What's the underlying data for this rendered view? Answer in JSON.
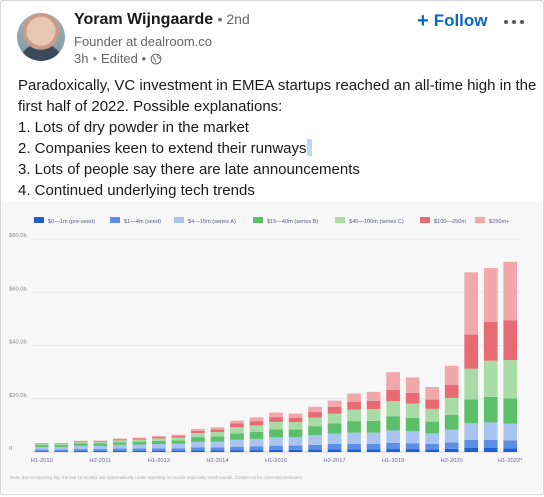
{
  "post": {
    "author_name": "Yoram Wijngaarde",
    "degree": "• 2nd",
    "headline": "Founder at dealroom.co",
    "meta_time": "3h",
    "meta_edited": "Edited •",
    "follow_label": "Follow",
    "follow_icon": "plus-icon",
    "more_icon": "more-horizontal-icon",
    "visibility_icon": "globe-icon",
    "text_lines": [
      "Paradoxically, VC investment in EMEA startups reached an all-time high in the",
      "first half of 2022. Possible explanations:",
      "1. Lots of dry powder in the market",
      "2. Companies keen to extend their runways",
      "3. Lots of people say there are late announcements",
      "4. Continued underlying tech trends"
    ]
  },
  "chart_data": {
    "type": "bar",
    "stacked": true,
    "title": "",
    "xlabel": "",
    "ylabel": "",
    "ylim": [
      0,
      80
    ],
    "y_ticks": [
      "0",
      "$20.0b",
      "$40.0b",
      "$60.0b",
      "$80.0b"
    ],
    "grid": true,
    "legend_position": "top",
    "x_tick_labels": [
      "H1-2010",
      "H2-2011",
      "H1-2013",
      "H2-2014",
      "H1-2016",
      "H2-2017",
      "H1-2019",
      "H2-2020",
      "H1-2022*"
    ],
    "categories": [
      "H1-2010",
      "H2-2010",
      "H1-2011",
      "H2-2011",
      "H1-2012",
      "H2-2012",
      "H1-2013",
      "H2-2013",
      "H1-2014",
      "H2-2014",
      "H1-2015",
      "H2-2015",
      "H1-2016",
      "H2-2016",
      "H1-2017",
      "H2-2017",
      "H1-2018",
      "H2-2018",
      "H1-2019",
      "H2-2019",
      "H1-2020",
      "H2-2020",
      "H1-2021",
      "H2-2021",
      "H1-2022*"
    ],
    "footnote": "Note: due to reporting lag, the last 12 months are systematically under reporting on rounds especially small rounds. Contact us for corrected estimates.",
    "series": [
      {
        "name": "$0—1m (pre-seed)",
        "color": "#1f5fd1",
        "values": [
          0.3,
          0.3,
          0.4,
          0.4,
          0.5,
          0.5,
          0.5,
          0.5,
          0.6,
          0.6,
          0.7,
          0.7,
          0.8,
          0.8,
          0.9,
          1.0,
          1.0,
          1.0,
          1.1,
          1.1,
          1.0,
          1.2,
          1.5,
          1.5,
          1.4
        ]
      },
      {
        "name": "$1—4m (seed)",
        "color": "#5b8fe6",
        "values": [
          0.6,
          0.6,
          0.7,
          0.7,
          0.8,
          0.8,
          0.9,
          0.9,
          1.1,
          1.1,
          1.3,
          1.4,
          1.6,
          1.6,
          1.8,
          2.0,
          2.1,
          2.1,
          2.3,
          2.2,
          2.0,
          2.4,
          3.0,
          3.1,
          3.0
        ]
      },
      {
        "name": "$4—15m (series A)",
        "color": "#a9c4f0",
        "values": [
          1.0,
          1.0,
          1.2,
          1.2,
          1.4,
          1.5,
          1.6,
          1.7,
          2.1,
          2.2,
          2.6,
          2.8,
          3.1,
          3.2,
          3.6,
          3.9,
          4.2,
          4.2,
          4.7,
          4.5,
          4.0,
          4.8,
          6.3,
          6.5,
          6.3
        ]
      },
      {
        "name": "$15—40m (series B)",
        "color": "#5cbf6a",
        "values": [
          0.7,
          0.7,
          0.9,
          0.9,
          1.0,
          1.1,
          1.2,
          1.3,
          1.8,
          1.9,
          2.4,
          2.6,
          3.0,
          2.9,
          3.4,
          3.8,
          4.3,
          4.4,
          5.3,
          5.0,
          4.4,
          5.6,
          9.0,
          9.6,
          9.4
        ]
      },
      {
        "name": "$40—100m (series C)",
        "color": "#a9dba6",
        "values": [
          0.4,
          0.4,
          0.5,
          0.6,
          0.7,
          0.8,
          0.9,
          1.0,
          1.5,
          1.7,
          2.3,
          2.5,
          2.8,
          2.7,
          3.2,
          3.7,
          4.3,
          4.4,
          5.7,
          5.4,
          4.8,
          6.3,
          11.5,
          13.6,
          14.4
        ]
      },
      {
        "name": "$100—250m",
        "color": "#e86a72",
        "values": [
          0.2,
          0.2,
          0.3,
          0.3,
          0.4,
          0.4,
          0.5,
          0.6,
          0.9,
          1.0,
          1.4,
          1.6,
          1.8,
          1.7,
          2.1,
          2.5,
          3.0,
          3.1,
          4.2,
          4.0,
          3.5,
          5.0,
          12.8,
          14.6,
          15.0
        ]
      },
      {
        "name": "$250m+",
        "color": "#f2a8ab",
        "values": [
          0.1,
          0.1,
          0.2,
          0.2,
          0.3,
          0.3,
          0.4,
          0.5,
          0.7,
          0.8,
          1.1,
          1.4,
          1.7,
          1.5,
          2.0,
          2.4,
          3.1,
          3.4,
          6.7,
          5.8,
          4.7,
          7.1,
          23.4,
          20.2,
          21.9
        ]
      }
    ]
  }
}
